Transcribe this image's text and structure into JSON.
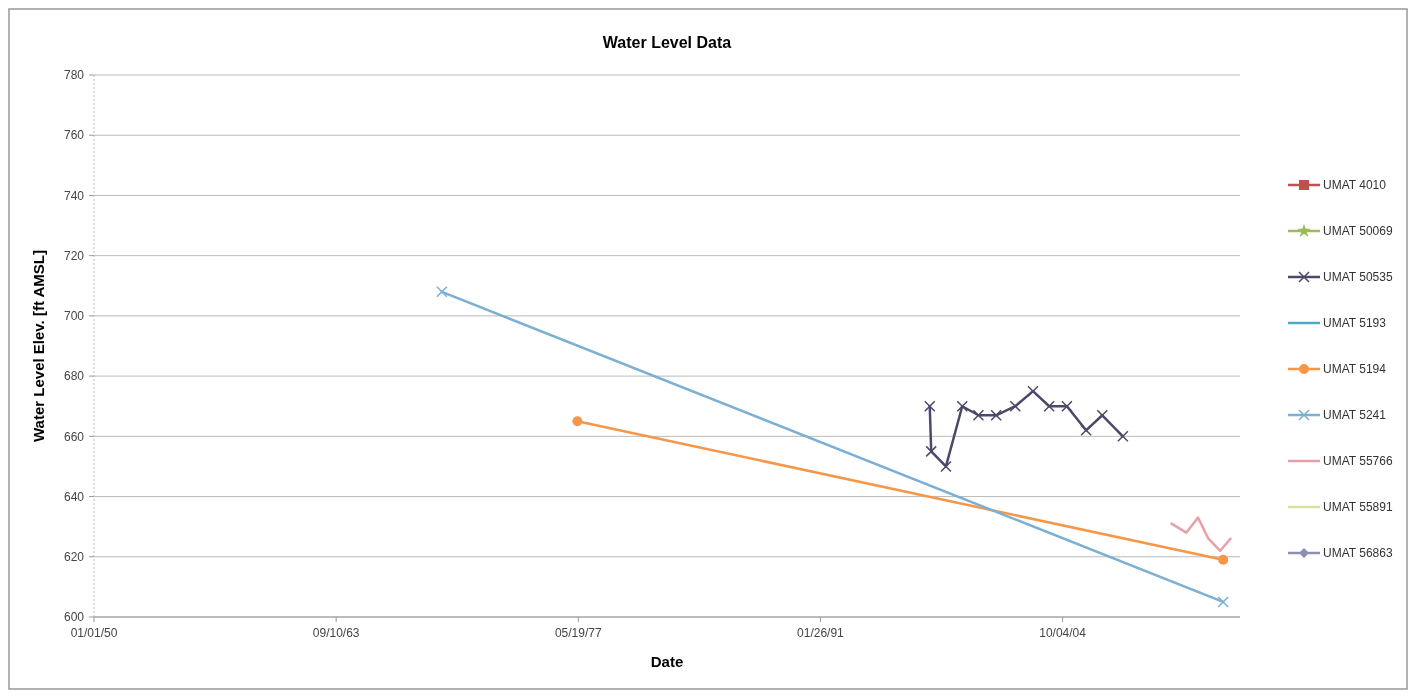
{
  "chart_data": {
    "type": "line",
    "title": "Water Level Data",
    "xlabel": "Date",
    "ylabel": "Water Level Elev. [ft AMSL]",
    "xlim": [
      "1950-01-01",
      "2014-10-15"
    ],
    "xticks": [
      {
        "value": "1950-01-01",
        "label": "01/01/50"
      },
      {
        "value": "1963-09-10",
        "label": "09/10/63"
      },
      {
        "value": "1977-05-19",
        "label": "05/19/77"
      },
      {
        "value": "1991-01-26",
        "label": "01/26/91"
      },
      {
        "value": "2004-10-04",
        "label": "10/04/04"
      }
    ],
    "ylim": [
      600,
      780
    ],
    "yticks": [
      600,
      620,
      640,
      660,
      680,
      700,
      720,
      740,
      760,
      780
    ],
    "grid": "y",
    "legend": "right",
    "series": [
      {
        "name": "UMAT 4010",
        "color": "#c0504d",
        "marker": "square"
      },
      {
        "name": "UMAT 50069",
        "color": "#9bbb59",
        "marker": "star"
      },
      {
        "name": "UMAT 50535",
        "color": "#4b4a6a",
        "marker": "cross",
        "x": [
          "1997-04",
          "1997-05",
          "1998-03",
          "1999-02",
          "2000-01",
          "2001-01",
          "2002-02",
          "2003-02",
          "2004-01",
          "2005-01",
          "2006-02",
          "2007-01",
          "2008-03"
        ],
        "values": [
          670,
          655,
          650,
          670,
          667,
          667,
          670,
          675,
          670,
          670,
          662,
          667,
          660
        ]
      },
      {
        "name": "UMAT 5193",
        "color": "#4bacc6",
        "marker": "none"
      },
      {
        "name": "UMAT 5194",
        "color": "#f79646",
        "marker": "circle",
        "x": [
          "1977-05",
          "2013-11"
        ],
        "values": [
          665,
          619
        ]
      },
      {
        "name": "UMAT 5241",
        "color": "#7bafd4",
        "marker": "cross",
        "x": [
          "1969-09",
          "2013-11"
        ],
        "values": [
          708,
          605
        ]
      },
      {
        "name": "UMAT 55766",
        "color": "#e8a0a8",
        "marker": "none",
        "x": [
          "2010-12",
          "2011-10",
          "2012-06",
          "2013-01",
          "2013-09",
          "2014-04"
        ],
        "values": [
          631,
          628,
          633,
          626,
          622,
          626
        ]
      },
      {
        "name": "UMAT 55891",
        "color": "#d8e0a0",
        "marker": "none"
      },
      {
        "name": "UMAT 56863",
        "color": "#8c8fb0",
        "marker": "diamond"
      }
    ]
  }
}
